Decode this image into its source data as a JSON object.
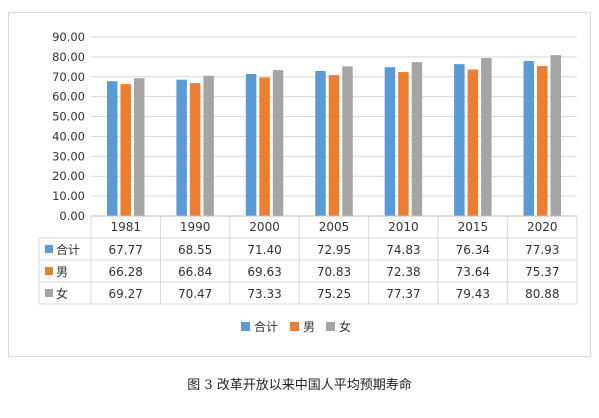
{
  "caption": "图 3  改革开放以来中国人平均预期寿命",
  "colors": {
    "total": "#5b9bd5",
    "male": "#ed7d31",
    "female": "#a5a5a5",
    "grid": "#d9d9d9",
    "text": "#333333"
  },
  "chart_data": {
    "type": "bar",
    "categories": [
      "1981",
      "1990",
      "2000",
      "2005",
      "2010",
      "2015",
      "2020"
    ],
    "series": [
      {
        "name": "合计",
        "values": [
          67.77,
          68.55,
          71.4,
          72.95,
          74.83,
          76.34,
          77.93
        ],
        "value_labels": [
          "67.77",
          "68.55",
          "71.40",
          "72.95",
          "74.83",
          "76.34",
          "77.93"
        ]
      },
      {
        "name": "男",
        "values": [
          66.28,
          66.84,
          69.63,
          70.83,
          72.38,
          73.64,
          75.37
        ],
        "value_labels": [
          "66.28",
          "66.84",
          "69.63",
          "70.83",
          "72.38",
          "73.64",
          "75.37"
        ]
      },
      {
        "name": "女",
        "values": [
          69.27,
          70.47,
          73.33,
          75.25,
          77.37,
          79.43,
          80.88
        ],
        "value_labels": [
          "69.27",
          "70.47",
          "73.33",
          "75.25",
          "77.37",
          "79.43",
          "80.88"
        ]
      }
    ],
    "ylim": [
      0,
      90
    ],
    "yticks": [
      "0.00",
      "10.00",
      "20.00",
      "30.00",
      "40.00",
      "50.00",
      "60.00",
      "70.00",
      "80.00",
      "90.00"
    ],
    "grid": true,
    "legend": "bottom-center",
    "data_table": true
  }
}
